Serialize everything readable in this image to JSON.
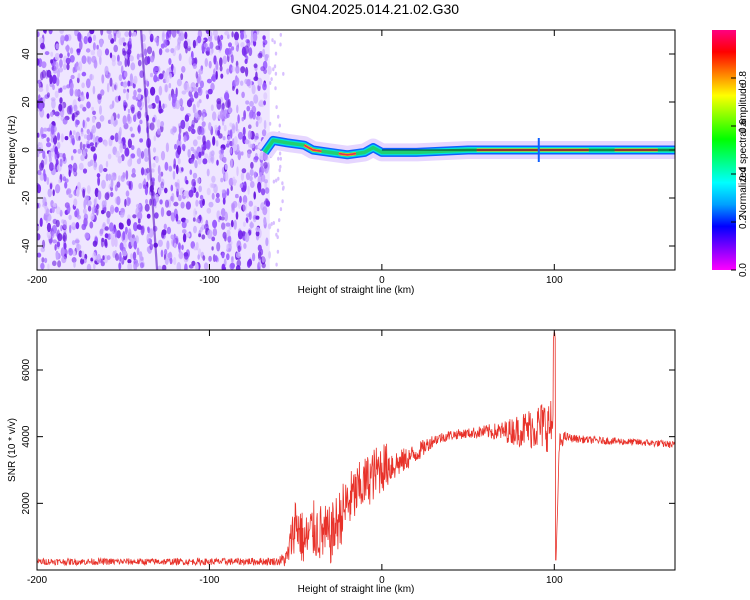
{
  "title": "GN04.2025.014.21.02.G30",
  "colors": {
    "snr_line": "#e8322a",
    "scatter_fill": "#7a2cf0",
    "band_core": "#e0305a",
    "band_mid": "#20d070",
    "band_edge": "#1060ff"
  },
  "chart_data": [
    {
      "type": "heatmap",
      "xlabel": "Height of straight line (km)",
      "ylabel": "Frequency (Hz)",
      "xlim": [
        -200,
        170
      ],
      "ylim": [
        -50,
        50
      ],
      "xticks": [
        -200,
        -100,
        0,
        100
      ],
      "yticks": [
        -40,
        -20,
        0,
        20,
        40
      ],
      "xtick_labels": [
        "-200",
        "-100",
        "0",
        "100"
      ],
      "ytick_labels": [
        "-40",
        "-20",
        "0",
        "20",
        "40"
      ],
      "grid": false,
      "noise_region": {
        "x_from": -200,
        "x_to": -65,
        "freq_range": [
          -50,
          50
        ],
        "normalized_amplitude": 0.15
      },
      "band_centerline": [
        {
          "x": -68,
          "freq": -1
        },
        {
          "x": -63,
          "freq": 4
        },
        {
          "x": -55,
          "freq": 3
        },
        {
          "x": -45,
          "freq": 2
        },
        {
          "x": -40,
          "freq": 0
        },
        {
          "x": -30,
          "freq": -1
        },
        {
          "x": -20,
          "freq": -2
        },
        {
          "x": -10,
          "freq": -1
        },
        {
          "x": -5,
          "freq": 1
        },
        {
          "x": 0,
          "freq": -1
        },
        {
          "x": 20,
          "freq": -1
        },
        {
          "x": 50,
          "freq": 0
        },
        {
          "x": 60,
          "freq": 0
        },
        {
          "x": 90,
          "freq": 0
        },
        {
          "x": 100,
          "freq": 0
        },
        {
          "x": 140,
          "freq": 0
        },
        {
          "x": 170,
          "freq": 0
        }
      ],
      "strong_segments": [
        [
          -45,
          -35
        ],
        [
          -25,
          -15
        ],
        [
          55,
          120
        ],
        [
          135,
          160
        ]
      ]
    },
    {
      "type": "colorbar",
      "label": "Normalized spectral amplitude",
      "range": [
        0,
        1
      ],
      "ticks": [
        0.0,
        0.2,
        0.4,
        0.6,
        0.8
      ],
      "tick_labels": [
        "0.0",
        "0.2",
        "0.4",
        "0.6",
        "0.8"
      ],
      "colormap": [
        "#ff00ff",
        "#8000ff",
        "#0000ff",
        "#00a0ff",
        "#00ffff",
        "#00ff80",
        "#00ff00",
        "#80ff00",
        "#ffff00",
        "#ff8000",
        "#ff0000",
        "#ff0080"
      ]
    },
    {
      "type": "line",
      "xlabel": "Height of straight line (km)",
      "ylabel": "SNR (10 * v/v)",
      "xlim": [
        -200,
        170
      ],
      "ylim": [
        0,
        7200
      ],
      "xticks": [
        -200,
        -100,
        0,
        100
      ],
      "yticks": [
        2000,
        4000,
        6000
      ],
      "xtick_labels": [
        "-200",
        "-100",
        "0",
        "100"
      ],
      "ytick_labels": [
        "2000",
        "4000",
        "6000"
      ],
      "grid": false,
      "series": [
        {
          "x": [
            -200,
            -150,
            -100,
            -60,
            -55,
            -50,
            -45,
            -40,
            -30,
            -20,
            -10,
            0,
            10,
            20,
            30,
            40,
            50,
            60,
            70,
            80,
            90,
            95,
            99,
            100,
            101,
            103,
            106,
            110,
            120,
            140,
            160,
            170
          ],
          "y": [
            250,
            250,
            250,
            260,
            350,
            1500,
            800,
            1200,
            1000,
            2000,
            2600,
            3100,
            3200,
            3500,
            3900,
            4050,
            4100,
            4150,
            4150,
            4200,
            4300,
            4350,
            4300,
            6800,
            300,
            3800,
            4000,
            3950,
            3900,
            3850,
            3800,
            3750
          ],
          "noise_amplitude": [
            100,
            100,
            100,
            120,
            300,
            900,
            800,
            900,
            900,
            900,
            800,
            800,
            400,
            300,
            180,
            150,
            150,
            200,
            300,
            500,
            700,
            800,
            800,
            0,
            0,
            300,
            150,
            120,
            110,
            110,
            110,
            110
          ]
        }
      ]
    }
  ]
}
